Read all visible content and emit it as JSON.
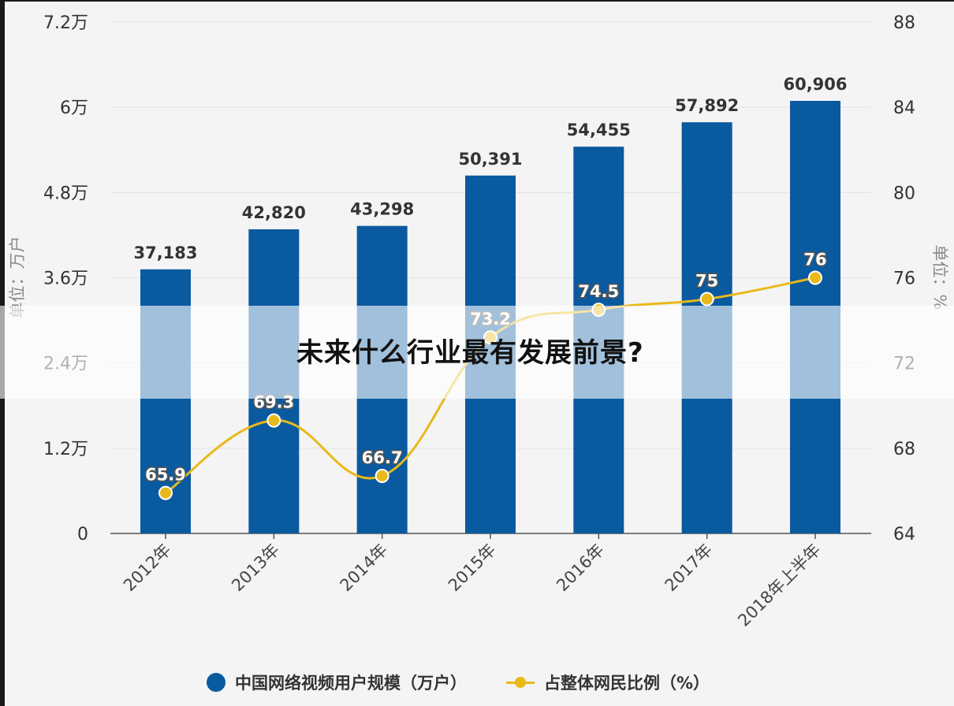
{
  "page": {
    "overlay_title": "未来什么行业最有发展前景?"
  },
  "chart_data": {
    "type": "bar",
    "categories": [
      "2012年",
      "2013年",
      "2014年",
      "2015年",
      "2016年",
      "2017年",
      "2018年上半年"
    ],
    "series": [
      {
        "name": "中国网络视频用户规模（万户）",
        "type": "bar",
        "axis": "left",
        "color": "#0a5aa0",
        "values": [
          37183,
          42820,
          43298,
          50391,
          54455,
          57892,
          60906
        ],
        "labels": [
          "37,183",
          "42,820",
          "43,298",
          "50,391",
          "54,455",
          "57,892",
          "60,906"
        ]
      },
      {
        "name": "占整体网民比例（%）",
        "type": "line",
        "axis": "right",
        "color": "#e9b919",
        "values": [
          65.9,
          69.3,
          66.7,
          73.2,
          74.5,
          75,
          76
        ],
        "labels": [
          "65.9",
          "69.3",
          "66.7",
          "73.2",
          "74.5",
          "75",
          "76"
        ]
      }
    ],
    "y_left": {
      "label": "单位：万户",
      "range": [
        0,
        72000
      ],
      "ticks": [
        0,
        12000,
        24000,
        36000,
        48000,
        60000,
        72000
      ],
      "tick_labels": [
        "0",
        "1.2万",
        "2.4万",
        "3.6万",
        "4.8万",
        "6万",
        "7.2万"
      ]
    },
    "y_right": {
      "label": "单位：%",
      "range": [
        64,
        88
      ],
      "ticks": [
        64,
        68,
        72,
        76,
        80,
        84,
        88
      ],
      "tick_labels": [
        "64",
        "68",
        "72",
        "76",
        "80",
        "84",
        "88"
      ]
    },
    "grid": true,
    "legend": "bottom"
  }
}
